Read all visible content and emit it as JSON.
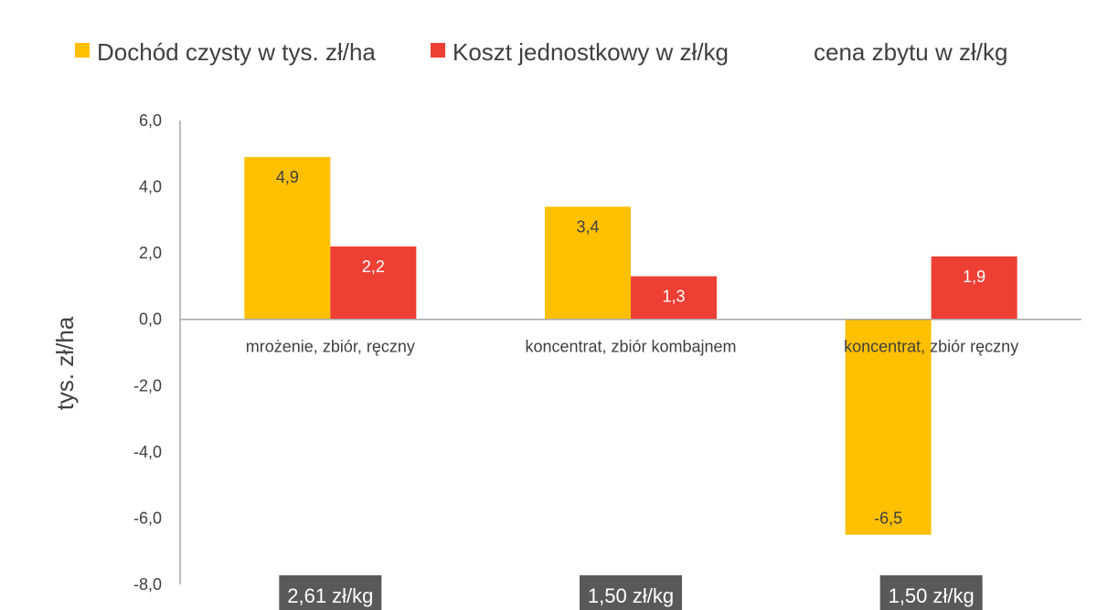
{
  "chart_data": {
    "type": "bar",
    "categories": [
      "mrożenie, zbiór, ręczny",
      "koncentrat, zbiór kombajnem",
      "koncentrat, zbiór ręczny"
    ],
    "series": [
      {
        "name": "Dochód czysty w tys. zł/ha",
        "color": "#FFC000",
        "values": [
          4.9,
          3.4,
          -6.5
        ],
        "labels": [
          "4,9",
          "3,4",
          "-6,5"
        ],
        "label_color": "#404040"
      },
      {
        "name": "Koszt jednostkowy w zł/kg",
        "color": "#EE3F34",
        "values": [
          2.2,
          1.3,
          1.9
        ],
        "labels": [
          "2,2",
          "1,3",
          "1,9"
        ],
        "label_color": "#ffffff"
      }
    ],
    "legend_extra": {
      "name": "cena zbytu w zł/kg",
      "color": "#595959"
    },
    "price_labels": [
      "2,61 zł/kg",
      "1,50 zł/kg",
      "1,50 zł/kg"
    ],
    "ylabel": "tys. zł/ha",
    "xlabel": "",
    "ylim": [
      -8,
      6
    ],
    "yticks": [
      6,
      4,
      2,
      0,
      -2,
      -4,
      -6,
      -8
    ],
    "ytick_labels": [
      "6,0",
      "4,0",
      "2,0",
      "0,0",
      "-2,0",
      "-4,0",
      "-6,0",
      "-8,0"
    ],
    "grid": false,
    "legend_position": "top"
  }
}
